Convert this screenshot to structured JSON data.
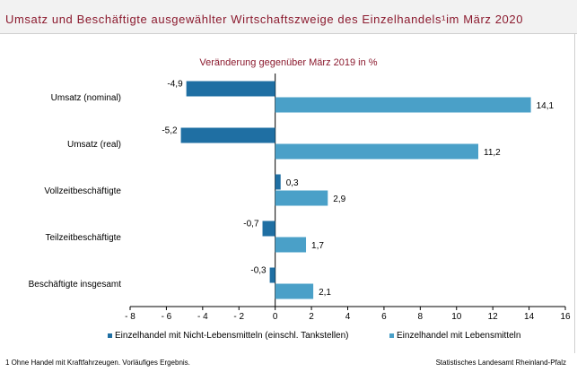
{
  "title": "Umsatz und Beschäftigte ausgewählter Wirtschaftszweige des Einzelhandels¹im März 2020",
  "chart_data": {
    "type": "bar",
    "orientation": "horizontal",
    "subtitle": "Veränderung gegenüber März 2019 in %",
    "categories": [
      "Umsatz (nominal)",
      "Umsatz (real)",
      "Vollzeitbeschäftigte",
      "Teilzeitbeschäftigte",
      "Beschäftigte insgesamt"
    ],
    "series": [
      {
        "name": "Einzelhandel mit Nicht-Lebensmitteln (einschl. Tankstellen)",
        "color": "#1f6fa3",
        "values": [
          -4.9,
          -5.2,
          0.3,
          -0.7,
          -0.3
        ],
        "labels": [
          "-4,9",
          "-5,2",
          "0,3",
          "-0,7",
          "-0,3"
        ]
      },
      {
        "name": "Einzelhandel mit Lebensmitteln",
        "color": "#4aa0c8",
        "values": [
          14.1,
          11.2,
          2.9,
          1.7,
          2.1
        ],
        "labels": [
          "14,1",
          "11,2",
          "2,9",
          "1,7",
          "2,1"
        ]
      }
    ],
    "xlim": [
      -8,
      16
    ],
    "ticks": [
      -8,
      -6,
      -4,
      -2,
      0,
      2,
      4,
      6,
      8,
      10,
      12,
      14,
      16
    ],
    "tick_labels": [
      "- 8",
      "- 6",
      "- 4",
      "- 2",
      "0",
      "2",
      "4",
      "6",
      "8",
      "10",
      "12",
      "14",
      "16"
    ],
    "legend_position": "bottom",
    "grid": false
  },
  "footnote": "1 Ohne Handel mit Kraftfahrzeugen.  Vorläufiges Ergebnis.",
  "source": "Statistisches Landesamt Rheinland-Pfalz"
}
